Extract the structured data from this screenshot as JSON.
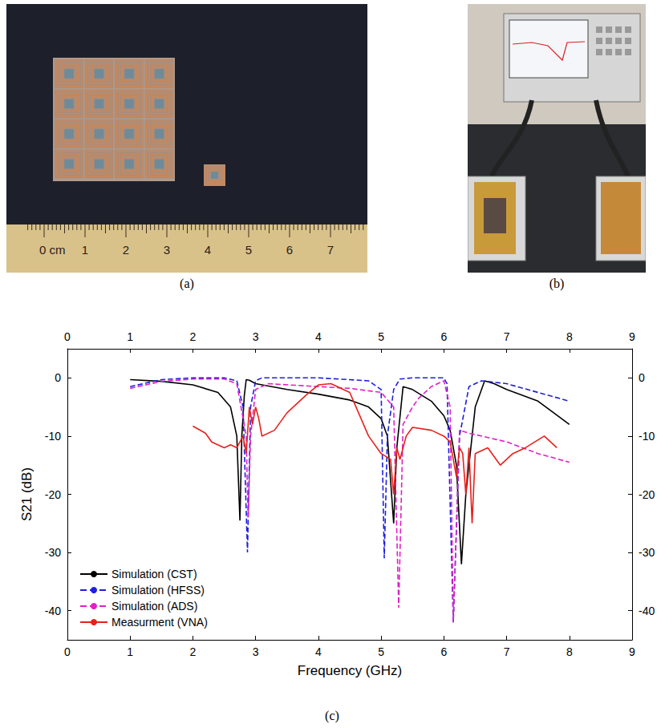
{
  "figure": {
    "panels": [
      {
        "label": "(a)",
        "ruler_labels": [
          "0 cm",
          "1",
          "2",
          "3",
          "4",
          "5",
          "6",
          "7"
        ]
      },
      {
        "label": "(b)"
      },
      {
        "label": "(c)"
      }
    ]
  },
  "chart_data": {
    "type": "line",
    "x_label": "Frequency (GHz)",
    "y_label": "S21 (dB)",
    "xlim": [
      0,
      9
    ],
    "xticks": [
      0,
      1,
      2,
      3,
      4,
      5,
      6,
      7,
      8,
      9
    ],
    "ylim": [
      -45,
      5
    ],
    "yticks": [
      -40,
      -30,
      -20,
      -10,
      0
    ],
    "grid": false,
    "legend": "lower left",
    "marker": "none",
    "series": [
      {
        "name": "Simulation (CST)",
        "color": "#000000",
        "line_style": "solid",
        "x": [
          1.0,
          1.5,
          2.0,
          2.4,
          2.6,
          2.7,
          2.75,
          2.78,
          2.82,
          2.85,
          2.9,
          3.0,
          3.5,
          4.0,
          4.5,
          4.8,
          5.0,
          5.1,
          5.2,
          5.25,
          5.35,
          5.5,
          5.8,
          6.0,
          6.1,
          6.2,
          6.28,
          6.35,
          6.5,
          6.65,
          6.8,
          7.0,
          7.5,
          8.0
        ],
        "values": [
          -0.3,
          -0.6,
          -1.2,
          -2.5,
          -5,
          -10,
          -24.5,
          -10,
          -3,
          -0.3,
          -0.4,
          -1.0,
          -2.0,
          -2.8,
          -3.8,
          -5,
          -7,
          -10,
          -25,
          -12,
          -1.5,
          -2,
          -4,
          -6.5,
          -9,
          -15,
          -32,
          -20,
          -5,
          -0.5,
          -1.0,
          -2,
          -4,
          -8
        ]
      },
      {
        "name": "Simulation (HFSS)",
        "color": "#1f1fdc",
        "line_style": "dashed",
        "x": [
          1.0,
          1.5,
          2.0,
          2.5,
          2.7,
          2.8,
          2.87,
          2.92,
          3.0,
          3.1,
          4.0,
          4.8,
          5.0,
          5.05,
          5.1,
          5.2,
          5.3,
          5.5,
          6.0,
          6.05,
          6.15,
          6.25,
          6.4,
          6.6,
          7.0,
          7.5,
          8.0
        ],
        "values": [
          -1.5,
          -0.3,
          0,
          0,
          -0.5,
          -5,
          -30,
          -5,
          -0.5,
          0,
          0,
          -0.5,
          -2,
          -31,
          -10,
          -2,
          -0.2,
          0,
          0,
          -1,
          -42,
          -10,
          -1.5,
          -0.5,
          -1,
          -2.5,
          -4
        ]
      },
      {
        "name": "Simulation (ADS)",
        "color": "#e020c8",
        "line_style": "dashed",
        "x": [
          1.0,
          1.5,
          2.0,
          2.5,
          2.7,
          2.85,
          2.88,
          2.92,
          3.0,
          3.2,
          4.0,
          4.5,
          5.0,
          5.2,
          5.28,
          5.35,
          5.5,
          5.6,
          5.8,
          6.0,
          6.1,
          6.15,
          6.25,
          6.4,
          7.0,
          7.5,
          8.0
        ],
        "values": [
          -1.8,
          -0.6,
          -0.2,
          -0.2,
          -1,
          -10,
          -24,
          -10,
          -2,
          -1,
          -1.5,
          -1.8,
          -2.5,
          -5,
          -39.5,
          -8,
          -5,
          -3.5,
          -1.5,
          -0.5,
          -5,
          -42,
          -9,
          -9.5,
          -11,
          -13,
          -14.5
        ]
      },
      {
        "name": "Measurment (VNA)",
        "color": "#e8201c",
        "line_style": "solid",
        "x": [
          2.0,
          2.2,
          2.3,
          2.5,
          2.6,
          2.7,
          2.8,
          2.85,
          2.9,
          2.95,
          3.0,
          3.05,
          3.1,
          3.3,
          3.5,
          3.8,
          4.0,
          4.2,
          4.5,
          4.6,
          4.8,
          5.0,
          5.15,
          5.2,
          5.25,
          5.3,
          5.4,
          5.5,
          5.8,
          6.0,
          6.1,
          6.2,
          6.25,
          6.3,
          6.35,
          6.4,
          6.45,
          6.5,
          6.7,
          6.9,
          7.1,
          7.3,
          7.6,
          7.8
        ],
        "values": [
          -8.3,
          -9.5,
          -11,
          -12,
          -11.5,
          -12,
          -10,
          -13,
          -5,
          -8,
          -5,
          -7,
          -10,
          -9,
          -6,
          -3,
          -1.2,
          -1,
          -2.5,
          -5,
          -10,
          -13,
          -14,
          -20,
          -12,
          -14,
          -10,
          -8.5,
          -9,
          -10,
          -11,
          -17,
          -12,
          -13,
          -20,
          -12,
          -25,
          -13,
          -12,
          -15,
          -13,
          -12,
          -10,
          -12
        ]
      }
    ]
  }
}
